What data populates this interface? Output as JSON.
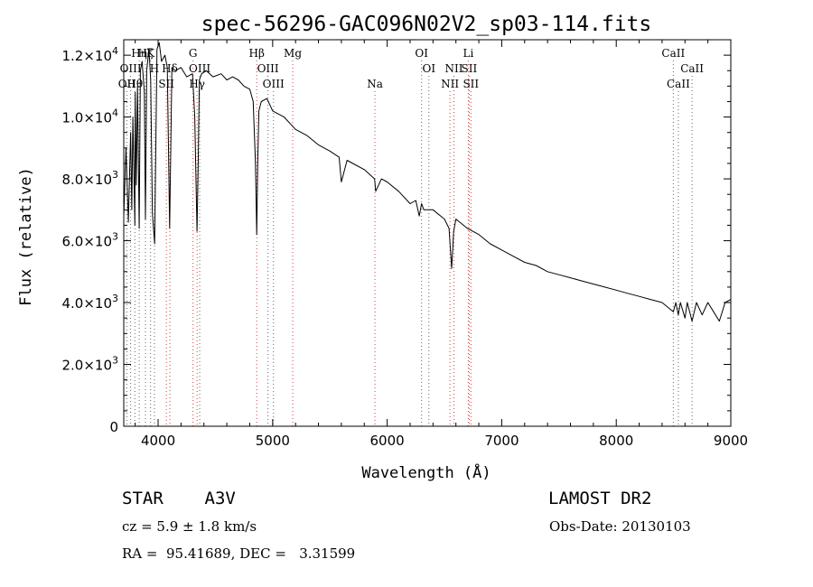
{
  "chart_data": {
    "type": "line",
    "title": "spec-56296-GAC096N02V2_sp03-114.fits",
    "xlabel": "Wavelength (Å)",
    "ylabel": "Flux (relative)",
    "xlim": [
      3700,
      9000
    ],
    "ylim": [
      0,
      12500
    ],
    "x_ticks": [
      4000,
      5000,
      6000,
      7000,
      8000,
      9000
    ],
    "x_tick_labels": [
      "4000",
      "5000",
      "6000",
      "7000",
      "8000",
      "9000"
    ],
    "y_ticks": [
      0,
      2000,
      4000,
      6000,
      8000,
      10000,
      12000
    ],
    "y_tick_labels": [
      {
        "mant": "0",
        "exp": ""
      },
      {
        "mant": "2.0×10",
        "exp": "3"
      },
      {
        "mant": "4.0×10",
        "exp": "3"
      },
      {
        "mant": "6.0×10",
        "exp": "3"
      },
      {
        "mant": "8.0×10",
        "exp": "3"
      },
      {
        "mant": "1.0×10",
        "exp": "4"
      },
      {
        "mant": "1.2×10",
        "exp": "4"
      }
    ],
    "series": [
      {
        "name": "spectrum",
        "x": [
          3700,
          3720,
          3740,
          3760,
          3770,
          3780,
          3797,
          3800,
          3810,
          3820,
          3835,
          3845,
          3860,
          3880,
          3889,
          3900,
          3920,
          3935,
          3950,
          3970,
          3990,
          4010,
          4030,
          4060,
          4080,
          4101,
          4120,
          4150,
          4200,
          4250,
          4300,
          4320,
          4340,
          4350,
          4360,
          4380,
          4420,
          4480,
          4550,
          4600,
          4650,
          4700,
          4750,
          4800,
          4830,
          4850,
          4861,
          4870,
          4880,
          4900,
          4950,
          5000,
          5100,
          5200,
          5300,
          5400,
          5500,
          5580,
          5600,
          5650,
          5700,
          5800,
          5890,
          5900,
          5950,
          6000,
          6100,
          6200,
          6250,
          6280,
          6300,
          6320,
          6400,
          6500,
          6540,
          6563,
          6580,
          6600,
          6700,
          6800,
          6900,
          7000,
          7100,
          7200,
          7300,
          7400,
          7500,
          7600,
          7700,
          7800,
          7900,
          8000,
          8100,
          8200,
          8300,
          8400,
          8498,
          8520,
          8542,
          8560,
          8600,
          8620,
          8662,
          8700,
          8750,
          8800,
          8850,
          8900,
          8950,
          9000
        ],
        "y": [
          6800,
          9000,
          6600,
          9500,
          7000,
          10000,
          6500,
          10800,
          7800,
          11000,
          6400,
          11500,
          11800,
          10800,
          6700,
          11500,
          12200,
          11200,
          6900,
          5900,
          12200,
          12400,
          11800,
          12000,
          11600,
          6400,
          11600,
          11500,
          11600,
          11300,
          11400,
          10000,
          6300,
          8500,
          11200,
          11400,
          11500,
          11300,
          11400,
          11200,
          11300,
          11200,
          11000,
          10900,
          10500,
          8500,
          6200,
          8500,
          10200,
          10500,
          10600,
          10200,
          10000,
          9600,
          9400,
          9100,
          8900,
          8700,
          7900,
          8600,
          8500,
          8300,
          8000,
          7600,
          8000,
          7900,
          7600,
          7200,
          7300,
          6800,
          7200,
          7000,
          7000,
          6700,
          6400,
          5100,
          6300,
          6700,
          6400,
          6200,
          5900,
          5700,
          5500,
          5300,
          5200,
          5000,
          4900,
          4800,
          4700,
          4600,
          4500,
          4400,
          4300,
          4200,
          4100,
          4000,
          3700,
          4000,
          3600,
          4000,
          3500,
          4000,
          3400,
          4000,
          3600,
          4000,
          3700,
          3400,
          4000,
          4100
        ]
      }
    ],
    "lines": [
      {
        "label": "OII",
        "wl": 3727,
        "row": 2
      },
      {
        "label": "OIII",
        "wl": 3760,
        "row": 1
      },
      {
        "label": "Hθ",
        "wl": 3797,
        "row": 2
      },
      {
        "label": "Hη",
        "wl": 3835,
        "row": 0
      },
      {
        "label": "Hζ",
        "wl": 3889,
        "row": 0
      },
      {
        "label": "K",
        "wl": 3934,
        "row": 0
      },
      {
        "label": "H",
        "wl": 3968,
        "row": 1
      },
      {
        "label": "Hδ",
        "wl": 4102,
        "row": 1
      },
      {
        "label": "SII",
        "wl": 4072,
        "row": 2
      },
      {
        "label": "G",
        "wl": 4305,
        "row": 0
      },
      {
        "label": "Hγ",
        "wl": 4340,
        "row": 2
      },
      {
        "label": "OIII",
        "wl": 4363,
        "row": 1
      },
      {
        "label": "Hβ",
        "wl": 4861,
        "row": 0
      },
      {
        "label": "OIII",
        "wl": 4959,
        "row": 1
      },
      {
        "label": "OIII",
        "wl": 5007,
        "row": 2
      },
      {
        "label": "Mg",
        "wl": 5175,
        "row": 0
      },
      {
        "label": "Na",
        "wl": 5893,
        "row": 2
      },
      {
        "label": "OI",
        "wl": 6300,
        "row": 0
      },
      {
        "label": "OI",
        "wl": 6364,
        "row": 1
      },
      {
        "label": "NII",
        "wl": 6548,
        "row": 2
      },
      {
        "label": "NII",
        "wl": 6583,
        "row": 1
      },
      {
        "label": "Li",
        "wl": 6708,
        "row": 0
      },
      {
        "label": "SII",
        "wl": 6716,
        "row": 1
      },
      {
        "label": "SII",
        "wl": 6731,
        "row": 2
      },
      {
        "label": "CaII",
        "wl": 8498,
        "row": 0
      },
      {
        "label": "CaII",
        "wl": 8542,
        "row": 2
      },
      {
        "label": "CaII",
        "wl": 8662,
        "row": 1
      }
    ]
  },
  "info": {
    "object": "STAR    A3V",
    "survey": "LAMOST DR2",
    "cz": "cz = 5.9 ± 1.8 km/s",
    "obs_date": "Obs-Date: 20130103",
    "coords": "RA =  95.41689, DEC =   3.31599"
  }
}
